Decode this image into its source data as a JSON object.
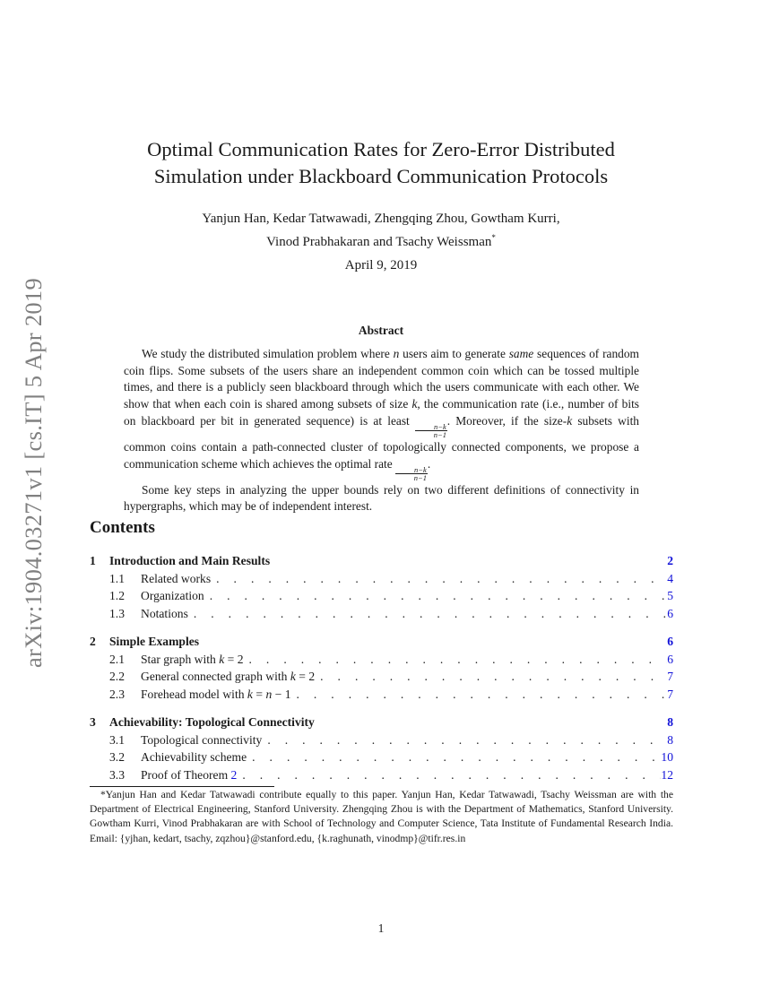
{
  "arxiv_stamp": "arXiv:1904.03271v1  [cs.IT]  5 Apr 2019",
  "title_lines": [
    "Optimal Communication Rates for Zero-Error Distributed",
    "Simulation under Blackboard Communication Protocols"
  ],
  "authors_lines": [
    "Yanjun Han, Kedar Tatwawadi, Zhengqing Zhou, Gowtham Kurri,",
    "Vinod Prabhakaran and Tsachy Weissman"
  ],
  "author_footnote_mark": "*",
  "date": "April 9, 2019",
  "abstract": {
    "heading": "Abstract",
    "paragraphs": [
      [
        "We study the distributed simulation problem where ",
        {
          "i": "n"
        },
        " users aim to generate ",
        {
          "i": "same"
        },
        " sequences of random coin flips.  Some subsets of the users share an independent common coin which can be tossed multiple times, and there is a publicly seen blackboard through which the users communicate with each other. We show that when each coin is shared among subsets of size ",
        {
          "i": "k"
        },
        ", the communication rate (i.e., number of bits on blackboard per bit in generated sequence) is at least ",
        {
          "frac": [
            "n−k",
            "n−1"
          ]
        },
        ". Moreover, if the size-",
        {
          "i": "k"
        },
        " subsets with common coins contain a path-connected cluster of topologically connected components, we propose a communication scheme which achieves the optimal rate ",
        {
          "frac": [
            "n−k",
            "n−1"
          ]
        },
        "."
      ],
      [
        "Some key steps in analyzing the upper bounds rely on two different definitions of connectivity in hypergraphs, which may be of independent interest."
      ]
    ]
  },
  "contents": {
    "heading": "Contents",
    "sections": [
      {
        "num": "1",
        "title": "Introduction and Main Results",
        "page": "2",
        "subs": [
          {
            "num": "1.1",
            "title": [
              "Related works"
            ],
            "page": "4"
          },
          {
            "num": "1.2",
            "title": [
              "Organization"
            ],
            "page": "5"
          },
          {
            "num": "1.3",
            "title": [
              "Notations"
            ],
            "page": "6"
          }
        ]
      },
      {
        "num": "2",
        "title": "Simple Examples",
        "page": "6",
        "subs": [
          {
            "num": "2.1",
            "title": [
              "Star graph with ",
              {
                "i": "k"
              },
              " = 2"
            ],
            "page": "6"
          },
          {
            "num": "2.2",
            "title": [
              "General connected graph with ",
              {
                "i": "k"
              },
              " = 2"
            ],
            "page": "7"
          },
          {
            "num": "2.3",
            "title": [
              "Forehead model with ",
              {
                "i": "k"
              },
              " = ",
              {
                "i": "n"
              },
              " − 1"
            ],
            "page": "7"
          }
        ]
      },
      {
        "num": "3",
        "title": "Achievability: Topological Connectivity",
        "page": "8",
        "subs": [
          {
            "num": "3.1",
            "title": [
              "Topological connectivity"
            ],
            "page": "8"
          },
          {
            "num": "3.2",
            "title": [
              "Achievability scheme"
            ],
            "page": "10"
          },
          {
            "num": "3.3",
            "title": [
              "Proof of Theorem ",
              {
                "link": "2"
              }
            ],
            "page": "12"
          }
        ]
      }
    ]
  },
  "footnote": "*Yanjun Han and Kedar Tatwawadi contribute equally to this paper.  Yanjun Han, Kedar Tatwawadi, Tsachy Weissman are with the Department of Electrical Engineering, Stanford University.  Zhengqing Zhou is with the Department of Mathematics, Stanford University.  Gowtham Kurri, Vinod Prabhakaran are with School of Technology and Computer Science, Tata Institute of Fundamental Research India.  Email: {yjhan, kedart, tsachy, zqzhou}@stanford.edu, {k.raghunath, vinodmp}@tifr.res.in",
  "page_number": "1",
  "colors": {
    "link": "#1010d8",
    "stamp": "#808080",
    "text": "#1a1a1a"
  }
}
